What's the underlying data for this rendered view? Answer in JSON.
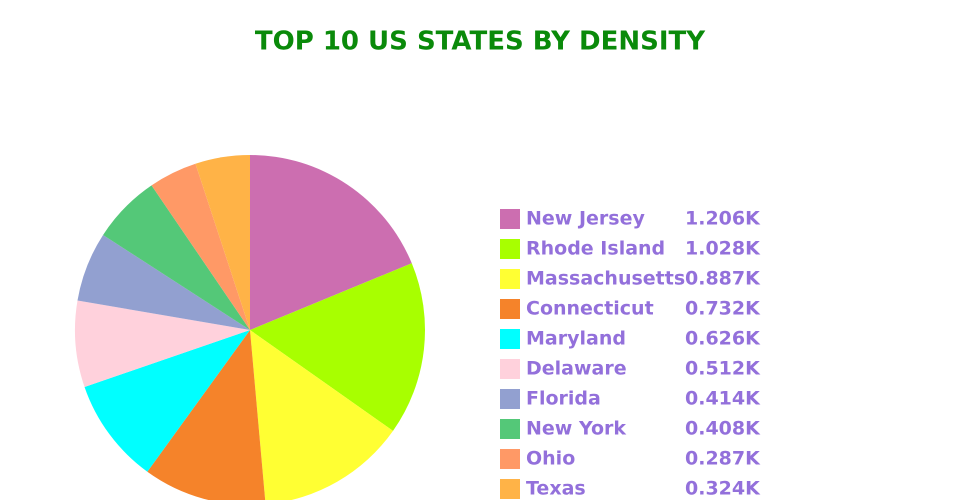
{
  "chart_data": {
    "type": "pie",
    "title": "TOP 10 US STATES BY DENSITY",
    "categories": [
      "New Jersey",
      "Rhode Island",
      "Massachusetts",
      "Connecticut",
      "Maryland",
      "Delaware",
      "Florida",
      "New York",
      "Ohio",
      "Texas"
    ],
    "values": [
      1206,
      1028,
      887,
      732,
      626,
      512,
      414,
      408,
      287,
      324
    ],
    "value_labels": [
      "1.206K",
      "1.028K",
      "0.887K",
      "0.732K",
      "0.626K",
      "0.512K",
      "0.414K",
      "0.408K",
      "0.287K",
      "0.324K"
    ],
    "colors": [
      "#cc6eb0",
      "#a8ff00",
      "#ffff33",
      "#f5832a",
      "#00ffff",
      "#ffd1dc",
      "#92a0d0",
      "#54c878",
      "#ff9966",
      "#ffb347"
    ],
    "legend": "right"
  }
}
